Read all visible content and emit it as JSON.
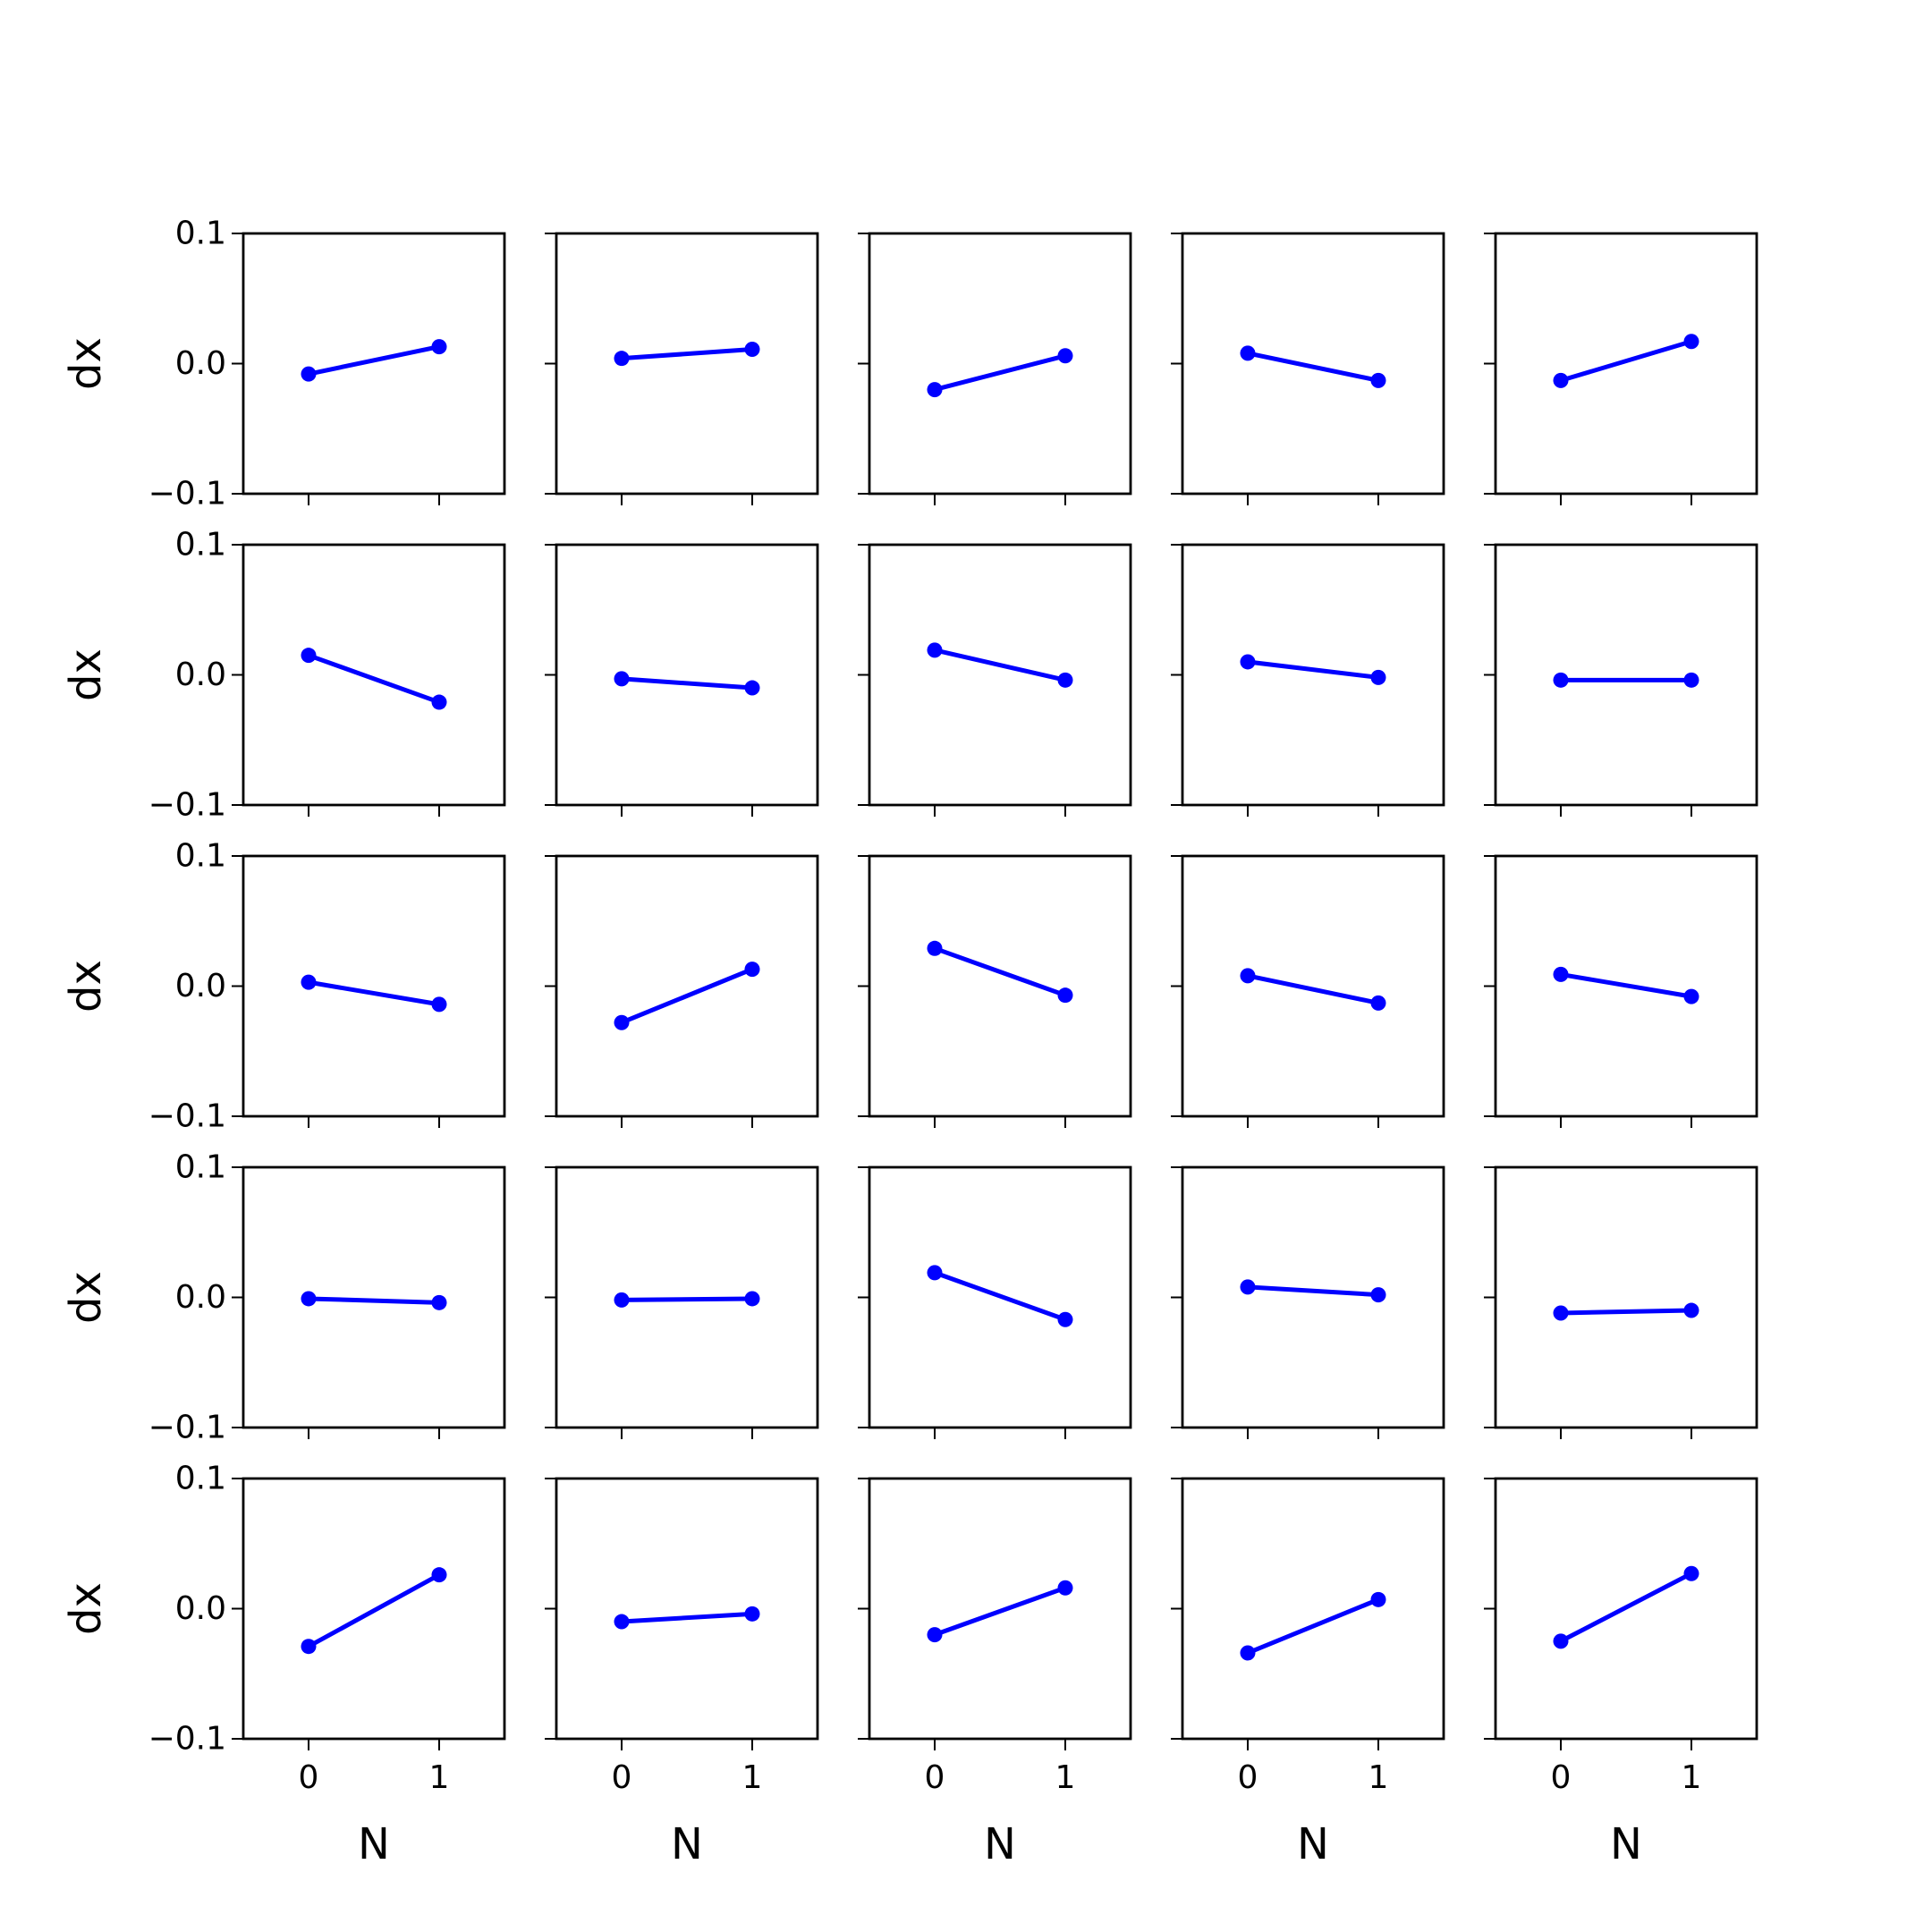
{
  "chart_data": {
    "type": "line",
    "layout": {
      "rows": 5,
      "cols": 5,
      "sharex": true,
      "sharey": true
    },
    "xlabel": "N",
    "ylabel": "dx",
    "x": [
      0,
      1
    ],
    "xticks": [
      0,
      1
    ],
    "xtick_labels": [
      "0",
      "1"
    ],
    "xlim": [
      -0.5,
      1.5
    ],
    "yticks": [
      -0.1,
      0.0,
      0.1
    ],
    "ytick_labels": [
      "−0.1",
      "0.0",
      "0.1"
    ],
    "ylim": [
      -0.1,
      0.1
    ],
    "grid": false,
    "line_color": "#0000ff",
    "marker": "circle",
    "panels": [
      {
        "row": 0,
        "col": 0,
        "values": [
          -0.008,
          0.013
        ]
      },
      {
        "row": 0,
        "col": 1,
        "values": [
          0.004,
          0.011
        ]
      },
      {
        "row": 0,
        "col": 2,
        "values": [
          -0.02,
          0.006
        ]
      },
      {
        "row": 0,
        "col": 3,
        "values": [
          0.008,
          -0.013
        ]
      },
      {
        "row": 0,
        "col": 4,
        "values": [
          -0.013,
          0.017
        ]
      },
      {
        "row": 1,
        "col": 0,
        "values": [
          0.015,
          -0.021
        ]
      },
      {
        "row": 1,
        "col": 1,
        "values": [
          -0.003,
          -0.01
        ]
      },
      {
        "row": 1,
        "col": 2,
        "values": [
          0.019,
          -0.004
        ]
      },
      {
        "row": 1,
        "col": 3,
        "values": [
          0.01,
          -0.002
        ]
      },
      {
        "row": 1,
        "col": 4,
        "values": [
          -0.004,
          -0.004
        ]
      },
      {
        "row": 2,
        "col": 0,
        "values": [
          0.003,
          -0.014
        ]
      },
      {
        "row": 2,
        "col": 1,
        "values": [
          -0.028,
          0.013
        ]
      },
      {
        "row": 2,
        "col": 2,
        "values": [
          0.029,
          -0.007
        ]
      },
      {
        "row": 2,
        "col": 3,
        "values": [
          0.008,
          -0.013
        ]
      },
      {
        "row": 2,
        "col": 4,
        "values": [
          0.009,
          -0.008
        ]
      },
      {
        "row": 3,
        "col": 0,
        "values": [
          -0.001,
          -0.004
        ]
      },
      {
        "row": 3,
        "col": 1,
        "values": [
          -0.002,
          -0.001
        ]
      },
      {
        "row": 3,
        "col": 2,
        "values": [
          0.019,
          -0.017
        ]
      },
      {
        "row": 3,
        "col": 3,
        "values": [
          0.008,
          0.002
        ]
      },
      {
        "row": 3,
        "col": 4,
        "values": [
          -0.012,
          -0.01
        ]
      },
      {
        "row": 4,
        "col": 0,
        "values": [
          -0.029,
          0.026
        ]
      },
      {
        "row": 4,
        "col": 1,
        "values": [
          -0.01,
          -0.004
        ]
      },
      {
        "row": 4,
        "col": 2,
        "values": [
          -0.02,
          0.016
        ]
      },
      {
        "row": 4,
        "col": 3,
        "values": [
          -0.034,
          0.007
        ]
      },
      {
        "row": 4,
        "col": 4,
        "values": [
          -0.025,
          0.027
        ]
      }
    ]
  }
}
